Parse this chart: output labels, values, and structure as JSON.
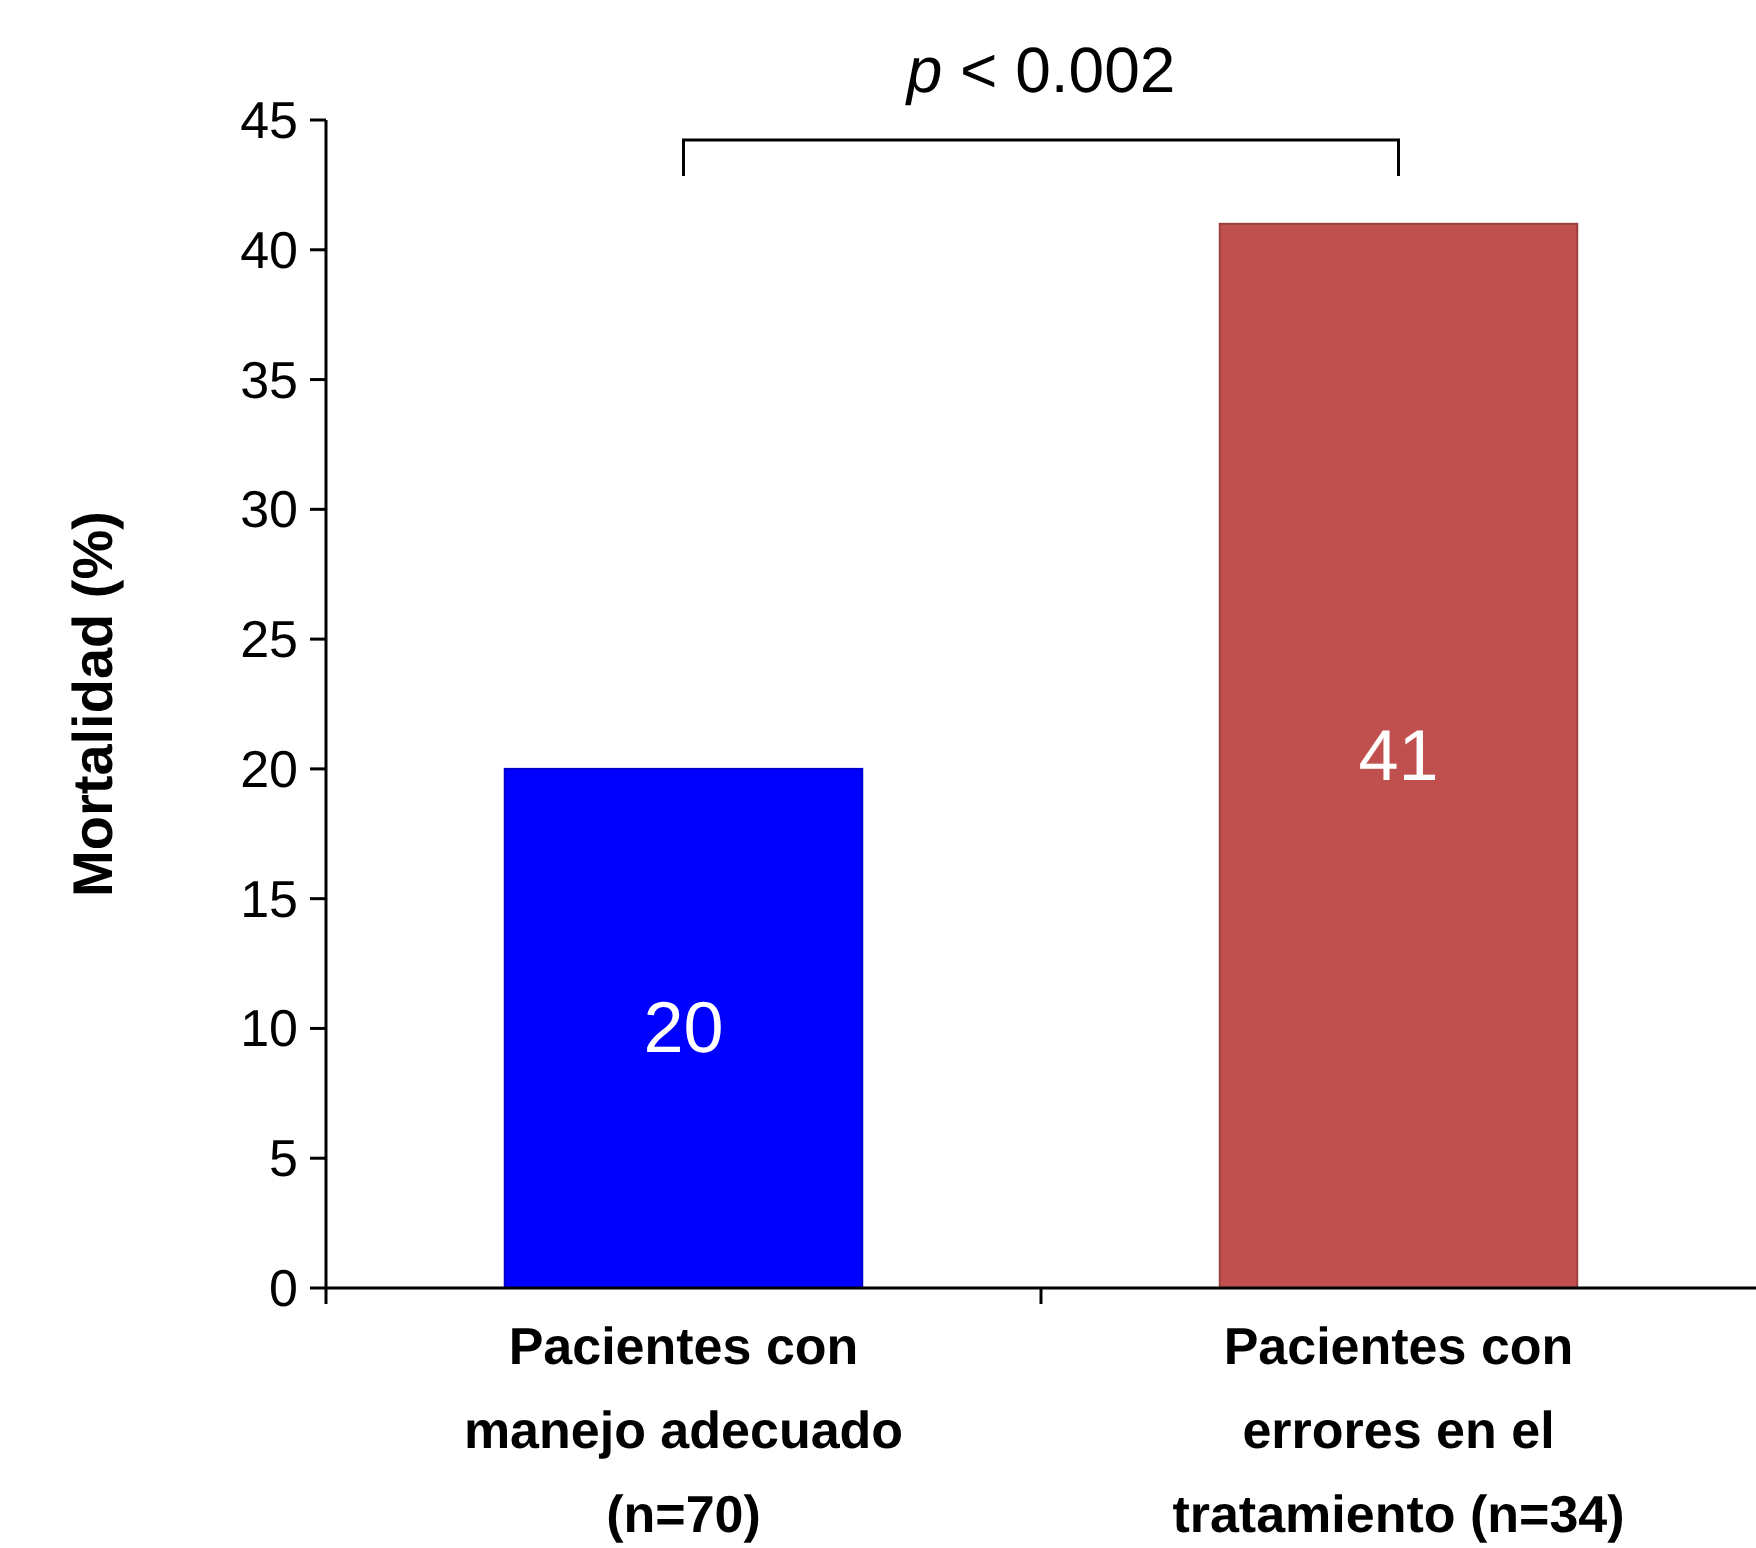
{
  "chart_data": {
    "type": "bar",
    "ylabel": "Mortalidad (%)",
    "categories": [
      "Pacientes con manejo adecuado (n=70)",
      "Pacientes con errores en el tratamiento (n=34)"
    ],
    "values": [
      20,
      41
    ],
    "colors": [
      "#0000ff",
      "#c0504d"
    ],
    "ylim": [
      0,
      45
    ],
    "yticks": [
      0,
      5,
      10,
      15,
      20,
      25,
      30,
      35,
      40,
      45
    ],
    "data_labels": true,
    "annotations": [
      "p < 0.002"
    ]
  }
}
